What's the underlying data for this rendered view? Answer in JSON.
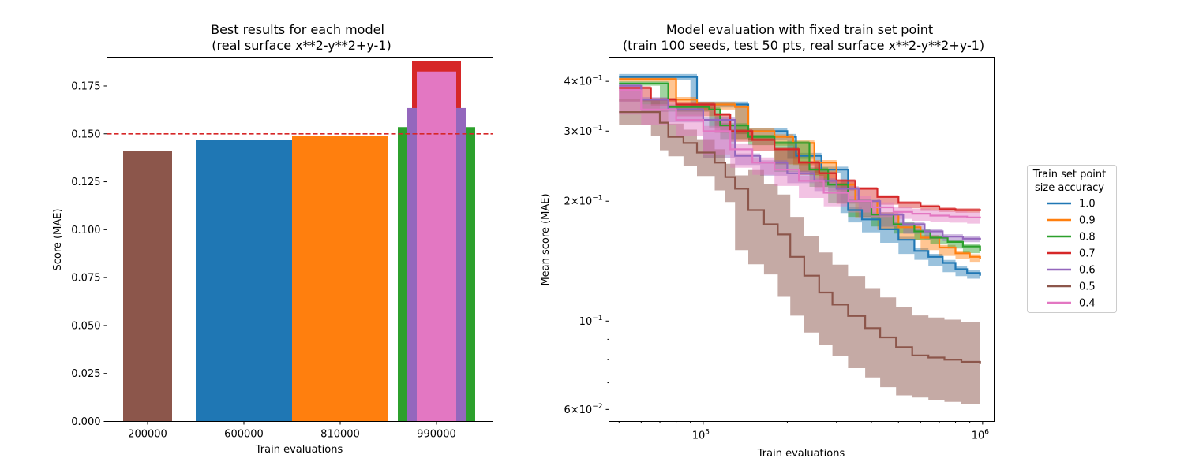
{
  "chart_data": [
    {
      "type": "bar",
      "title": "Best results for each model\n(real surface x**2-y**2+y-1)",
      "xlabel": "Train evaluations",
      "ylabel": "Score (MAE)",
      "ylim": [
        0,
        0.19
      ],
      "yticks": [
        0.0,
        0.025,
        0.05,
        0.075,
        0.1,
        0.125,
        0.15,
        0.175
      ],
      "ytick_labels": [
        "0.000",
        "0.025",
        "0.050",
        "0.075",
        "0.100",
        "0.125",
        "0.150",
        "0.175"
      ],
      "categories": [
        "200000",
        "600000",
        "810000",
        "990000"
      ],
      "reference_line": {
        "value": 0.15,
        "color": "#d62728",
        "style": "dashed"
      },
      "bars": [
        {
          "category": "200000",
          "value": 0.141,
          "color": "#8c564b",
          "width": "medium"
        },
        {
          "category": "600000",
          "value": 0.147,
          "color": "#1f77b4",
          "width": "wide"
        },
        {
          "category": "810000",
          "value": 0.149,
          "color": "#ff7f0e",
          "width": "wide"
        },
        {
          "category": "990000",
          "value": 0.1535,
          "color": "#2ca02c",
          "width": "widest"
        },
        {
          "category": "990000",
          "value": 0.188,
          "color": "#d62728",
          "width": "medium"
        },
        {
          "category": "990000",
          "value": 0.1635,
          "color": "#9467bd",
          "width": "narrow"
        },
        {
          "category": "990000",
          "value": 0.1825,
          "color": "#e377c2",
          "width": "narrowest"
        }
      ],
      "grid": false
    },
    {
      "type": "line",
      "title": "Model evaluation with fixed train set point\n(train 100 seeds, test 50 pts, real surface x**2-y**2+y-1)",
      "xlabel": "Train evaluations",
      "ylabel": "Mean score (MAE)",
      "xscale": "log",
      "yscale": "log",
      "xlim": [
        46000,
        1100000
      ],
      "ylim": [
        0.056,
        0.46
      ],
      "xticks_labels": [
        [
          "10",
          "5"
        ],
        [
          "10",
          "6"
        ]
      ],
      "yticks_labels": [
        [
          "4×10",
          "−1"
        ],
        [
          "3×10",
          "−1"
        ],
        [
          "2×10",
          "−1"
        ],
        [
          "10",
          "−1"
        ],
        [
          "6×10",
          "−2"
        ]
      ],
      "legend": {
        "title": "Train set point\nsize accuracy",
        "placement": "outside-right"
      },
      "grid": false,
      "series": [
        {
          "name": "1.0",
          "color": "#1f77b4",
          "band": 0.035,
          "points": [
            [
              50000,
              0.41
            ],
            [
              90000,
              0.41
            ],
            [
              95000,
              0.35
            ],
            [
              130000,
              0.35
            ],
            [
              145000,
              0.3
            ],
            [
              200000,
              0.29
            ],
            [
              215000,
              0.26
            ],
            [
              250000,
              0.26
            ],
            [
              265000,
              0.24
            ],
            [
              310000,
              0.24
            ],
            [
              330000,
              0.19
            ],
            [
              370000,
              0.18
            ],
            [
              430000,
              0.17
            ],
            [
              500000,
              0.16
            ],
            [
              570000,
              0.15
            ],
            [
              640000,
              0.145
            ],
            [
              720000,
              0.14
            ],
            [
              800000,
              0.135
            ],
            [
              880000,
              0.132
            ],
            [
              980000,
              0.13
            ]
          ]
        },
        {
          "name": "0.9",
          "color": "#ff7f0e",
          "band": 0.03,
          "points": [
            [
              50000,
              0.405
            ],
            [
              75000,
              0.405
            ],
            [
              80000,
              0.36
            ],
            [
              95000,
              0.35
            ],
            [
              130000,
              0.345
            ],
            [
              145000,
              0.3
            ],
            [
              180000,
              0.29
            ],
            [
              210000,
              0.28
            ],
            [
              250000,
              0.25
            ],
            [
              300000,
              0.22
            ],
            [
              350000,
              0.2
            ],
            [
              420000,
              0.185
            ],
            [
              500000,
              0.172
            ],
            [
              600000,
              0.162
            ],
            [
              700000,
              0.153
            ],
            [
              800000,
              0.148
            ],
            [
              900000,
              0.145
            ],
            [
              980000,
              0.143
            ]
          ]
        },
        {
          "name": "0.8",
          "color": "#2ca02c",
          "band": 0.025,
          "points": [
            [
              50000,
              0.395
            ],
            [
              70000,
              0.395
            ],
            [
              75000,
              0.345
            ],
            [
              105000,
              0.34
            ],
            [
              115000,
              0.31
            ],
            [
              145000,
              0.29
            ],
            [
              180000,
              0.28
            ],
            [
              240000,
              0.24
            ],
            [
              280000,
              0.22
            ],
            [
              330000,
              0.2
            ],
            [
              400000,
              0.185
            ],
            [
              480000,
              0.175
            ],
            [
              570000,
              0.168
            ],
            [
              650000,
              0.162
            ],
            [
              750000,
              0.158
            ],
            [
              850000,
              0.154
            ],
            [
              980000,
              0.15
            ]
          ]
        },
        {
          "name": "0.7",
          "color": "#d62728",
          "band": 0.02,
          "points": [
            [
              50000,
              0.385
            ],
            [
              65000,
              0.36
            ],
            [
              80000,
              0.35
            ],
            [
              110000,
              0.33
            ],
            [
              125000,
              0.3
            ],
            [
              150000,
              0.285
            ],
            [
              180000,
              0.27
            ],
            [
              220000,
              0.25
            ],
            [
              260000,
              0.235
            ],
            [
              300000,
              0.225
            ],
            [
              350000,
              0.215
            ],
            [
              420000,
              0.205
            ],
            [
              500000,
              0.198
            ],
            [
              600000,
              0.194
            ],
            [
              700000,
              0.191
            ],
            [
              800000,
              0.19
            ],
            [
              980000,
              0.189
            ]
          ]
        },
        {
          "name": "0.6",
          "color": "#9467bd",
          "band": 0.028,
          "points": [
            [
              50000,
              0.39
            ],
            [
              60000,
              0.36
            ],
            [
              75000,
              0.34
            ],
            [
              100000,
              0.32
            ],
            [
              130000,
              0.26
            ],
            [
              160000,
              0.25
            ],
            [
              200000,
              0.235
            ],
            [
              250000,
              0.225
            ],
            [
              300000,
              0.215
            ],
            [
              360000,
              0.2
            ],
            [
              430000,
              0.185
            ],
            [
              520000,
              0.175
            ],
            [
              620000,
              0.168
            ],
            [
              720000,
              0.163
            ],
            [
              850000,
              0.161
            ],
            [
              980000,
              0.16
            ]
          ]
        },
        {
          "name": "0.5",
          "color": "#8c564b",
          "band": 0.22,
          "points": [
            [
              50000,
              0.335
            ],
            [
              65000,
              0.335
            ],
            [
              70000,
              0.315
            ],
            [
              75000,
              0.29
            ],
            [
              85000,
              0.28
            ],
            [
              95000,
              0.265
            ],
            [
              110000,
              0.25
            ],
            [
              120000,
              0.23
            ],
            [
              130000,
              0.215
            ],
            [
              145000,
              0.19
            ],
            [
              165000,
              0.175
            ],
            [
              185000,
              0.165
            ],
            [
              205000,
              0.145
            ],
            [
              230000,
              0.13
            ],
            [
              260000,
              0.118
            ],
            [
              290000,
              0.11
            ],
            [
              330000,
              0.103
            ],
            [
              380000,
              0.096
            ],
            [
              430000,
              0.091
            ],
            [
              490000,
              0.086
            ],
            [
              560000,
              0.082
            ],
            [
              640000,
              0.081
            ],
            [
              730000,
              0.08
            ],
            [
              840000,
              0.079
            ],
            [
              980000,
              0.078
            ]
          ]
        },
        {
          "name": "0.4",
          "color": "#e377c2",
          "band": 0.06,
          "points": [
            [
              50000,
              0.38
            ],
            [
              60000,
              0.34
            ],
            [
              80000,
              0.32
            ],
            [
              100000,
              0.3
            ],
            [
              125000,
              0.27
            ],
            [
              150000,
              0.25
            ],
            [
              180000,
              0.24
            ],
            [
              220000,
              0.225
            ],
            [
              270000,
              0.21
            ],
            [
              330000,
              0.2
            ],
            [
              400000,
              0.193
            ],
            [
              480000,
              0.188
            ],
            [
              560000,
              0.186
            ],
            [
              650000,
              0.184
            ],
            [
              760000,
              0.183
            ],
            [
              880000,
              0.182
            ],
            [
              980000,
              0.181
            ]
          ]
        }
      ]
    }
  ]
}
